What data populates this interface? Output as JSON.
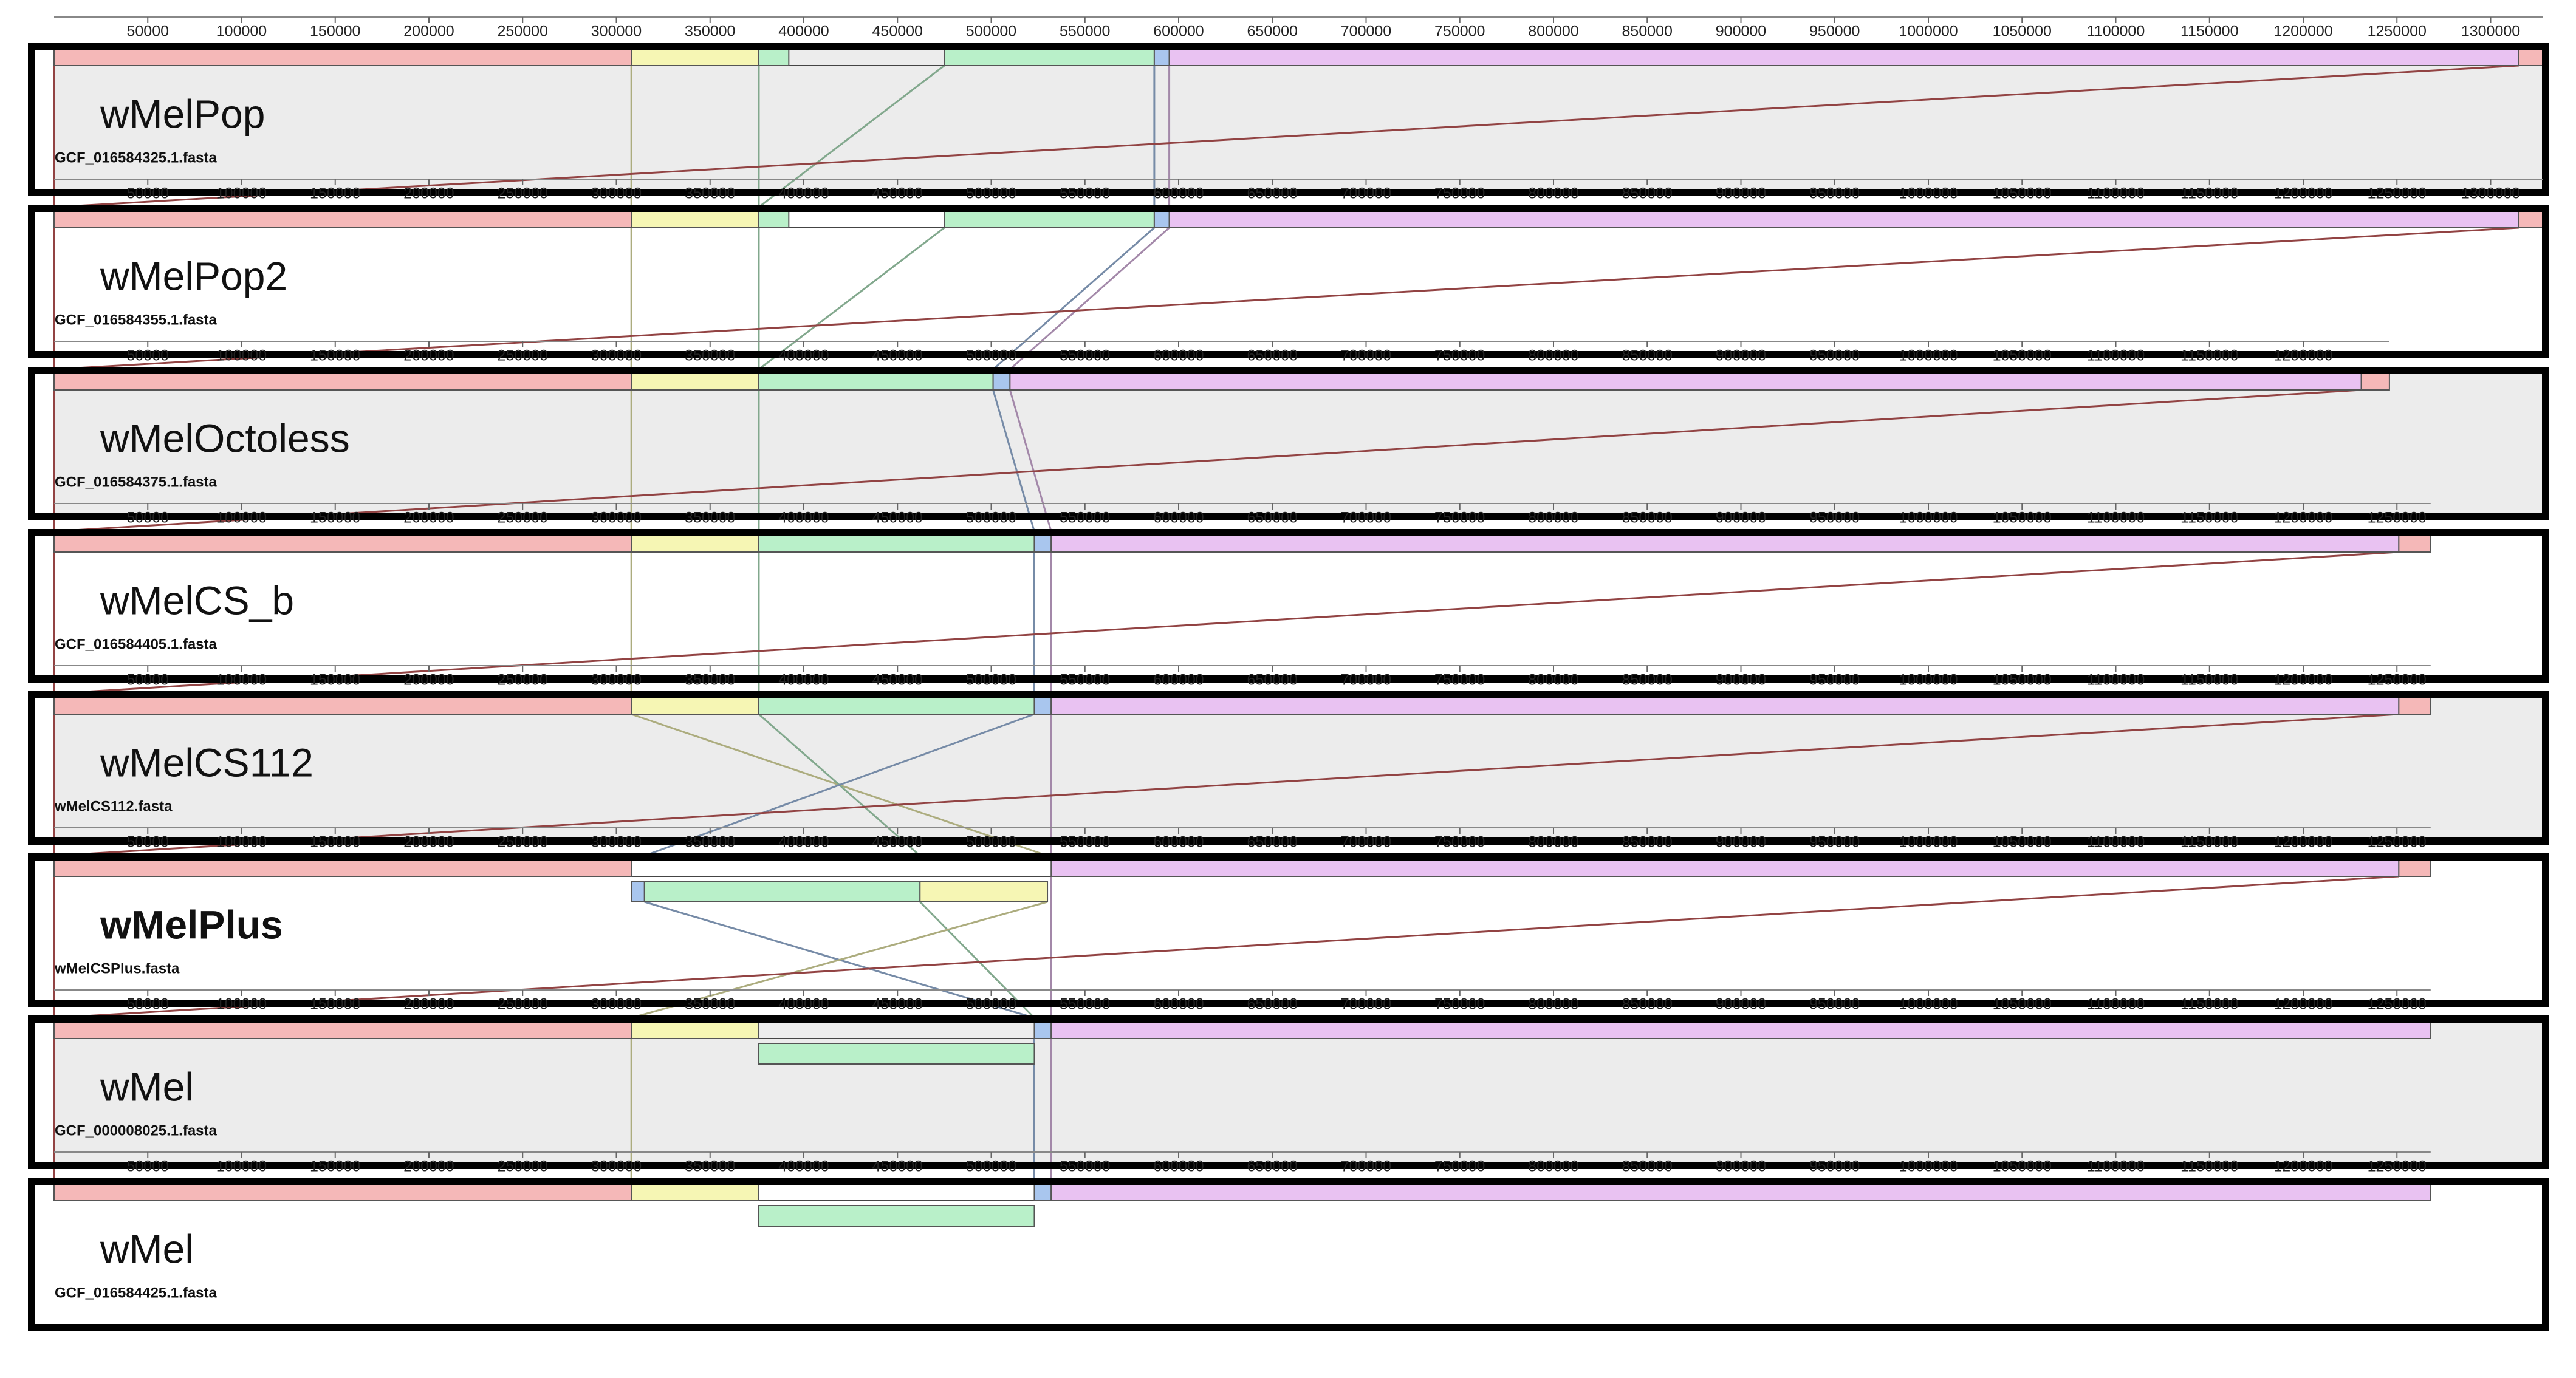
{
  "genomes": [
    {
      "name": "wMelPop",
      "file": "GCF_016584325.1.fasta",
      "bold": false,
      "shade": true,
      "length": 1328000,
      "ticks": [
        50000,
        100000,
        150000,
        200000,
        250000,
        300000,
        350000,
        400000,
        450000,
        500000,
        550000,
        600000,
        650000,
        700000,
        750000,
        800000,
        850000,
        900000,
        950000,
        1000000,
        1050000,
        1100000,
        1150000,
        1200000,
        1250000,
        1300000
      ],
      "blocks": [
        {
          "color": "#f5b8b8",
          "start": 0,
          "end": 308000,
          "inverted": false
        },
        {
          "color": "#f6f6b4",
          "start": 308000,
          "end": 376000,
          "inverted": false
        },
        {
          "color": "#b9f0c9",
          "start": 376000,
          "end": 392000,
          "inverted": false
        },
        {
          "color": "#b9f0c9",
          "start": 475000,
          "end": 587000,
          "inverted": false
        },
        {
          "color": "#a9c6ee",
          "start": 587000,
          "end": 595000,
          "inverted": false
        },
        {
          "color": "#e9c2f2",
          "start": 595000,
          "end": 1315000,
          "inverted": false
        },
        {
          "color": "#f5b8b8",
          "start": 1315000,
          "end": 1328000,
          "inverted": false
        }
      ]
    },
    {
      "name": "wMelPop2",
      "file": "GCF_016584355.1.fasta",
      "bold": false,
      "shade": false,
      "length": 1328000,
      "ticks": [
        50000,
        100000,
        150000,
        200000,
        250000,
        300000,
        350000,
        400000,
        450000,
        500000,
        550000,
        600000,
        650000,
        700000,
        750000,
        800000,
        850000,
        900000,
        950000,
        1000000,
        1050000,
        1100000,
        1150000,
        1200000,
        1250000,
        1300000
      ],
      "blocks": [
        {
          "color": "#f5b8b8",
          "start": 0,
          "end": 308000,
          "inverted": false
        },
        {
          "color": "#f6f6b4",
          "start": 308000,
          "end": 376000,
          "inverted": false
        },
        {
          "color": "#b9f0c9",
          "start": 376000,
          "end": 392000,
          "inverted": false
        },
        {
          "color": "#b9f0c9",
          "start": 475000,
          "end": 587000,
          "inverted": false
        },
        {
          "color": "#a9c6ee",
          "start": 587000,
          "end": 595000,
          "inverted": false
        },
        {
          "color": "#e9c2f2",
          "start": 595000,
          "end": 1315000,
          "inverted": false
        },
        {
          "color": "#f5b8b8",
          "start": 1315000,
          "end": 1328000,
          "inverted": false
        }
      ]
    },
    {
      "name": "wMelOctoless",
      "file": "GCF_016584375.1.fasta",
      "bold": false,
      "shade": true,
      "length": 1246000,
      "ticks": [
        50000,
        100000,
        150000,
        200000,
        250000,
        300000,
        350000,
        400000,
        450000,
        500000,
        550000,
        600000,
        650000,
        700000,
        750000,
        800000,
        850000,
        900000,
        950000,
        1000000,
        1050000,
        1100000,
        1150000,
        1200000
      ],
      "blocks": [
        {
          "color": "#f5b8b8",
          "start": 0,
          "end": 308000,
          "inverted": false
        },
        {
          "color": "#f6f6b4",
          "start": 308000,
          "end": 376000,
          "inverted": false
        },
        {
          "color": "#b9f0c9",
          "start": 376000,
          "end": 501000,
          "inverted": false
        },
        {
          "color": "#a9c6ee",
          "start": 501000,
          "end": 510000,
          "inverted": false
        },
        {
          "color": "#e9c2f2",
          "start": 510000,
          "end": 1231000,
          "inverted": false
        },
        {
          "color": "#f5b8b8",
          "start": 1231000,
          "end": 1246000,
          "inverted": false
        }
      ]
    },
    {
      "name": "wMelCS_b",
      "file": "GCF_016584405.1.fasta",
      "bold": false,
      "shade": false,
      "length": 1268000,
      "ticks": [
        50000,
        100000,
        150000,
        200000,
        250000,
        300000,
        350000,
        400000,
        450000,
        500000,
        550000,
        600000,
        650000,
        700000,
        750000,
        800000,
        850000,
        900000,
        950000,
        1000000,
        1050000,
        1100000,
        1150000,
        1200000,
        1250000
      ],
      "blocks": [
        {
          "color": "#f5b8b8",
          "start": 0,
          "end": 308000,
          "inverted": false
        },
        {
          "color": "#f6f6b4",
          "start": 308000,
          "end": 376000,
          "inverted": false
        },
        {
          "color": "#b9f0c9",
          "start": 376000,
          "end": 523000,
          "inverted": false
        },
        {
          "color": "#a9c6ee",
          "start": 523000,
          "end": 532000,
          "inverted": false
        },
        {
          "color": "#e9c2f2",
          "start": 532000,
          "end": 1251000,
          "inverted": false
        },
        {
          "color": "#f5b8b8",
          "start": 1251000,
          "end": 1268000,
          "inverted": false
        }
      ]
    },
    {
      "name": "wMelCS112",
      "file": "wMelCS112.fasta",
      "bold": false,
      "shade": true,
      "length": 1268000,
      "ticks": [
        50000,
        100000,
        150000,
        200000,
        250000,
        300000,
        350000,
        400000,
        450000,
        500000,
        550000,
        600000,
        650000,
        700000,
        750000,
        800000,
        850000,
        900000,
        950000,
        1000000,
        1050000,
        1100000,
        1150000,
        1200000,
        1250000
      ],
      "blocks": [
        {
          "color": "#f5b8b8",
          "start": 0,
          "end": 308000,
          "inverted": false
        },
        {
          "color": "#f6f6b4",
          "start": 308000,
          "end": 376000,
          "inverted": false
        },
        {
          "color": "#b9f0c9",
          "start": 376000,
          "end": 523000,
          "inverted": false
        },
        {
          "color": "#a9c6ee",
          "start": 523000,
          "end": 532000,
          "inverted": false
        },
        {
          "color": "#e9c2f2",
          "start": 532000,
          "end": 1251000,
          "inverted": false
        },
        {
          "color": "#f5b8b8",
          "start": 1251000,
          "end": 1268000,
          "inverted": false
        }
      ]
    },
    {
      "name": "wMelPlus",
      "file": "wMelCSPlus.fasta",
      "bold": true,
      "shade": false,
      "length": 1268000,
      "ticks": [
        50000,
        100000,
        150000,
        200000,
        250000,
        300000,
        350000,
        400000,
        450000,
        500000,
        550000,
        600000,
        650000,
        700000,
        750000,
        800000,
        850000,
        900000,
        950000,
        1000000,
        1050000,
        1100000,
        1150000,
        1200000,
        1250000
      ],
      "blocks": [
        {
          "color": "#f5b8b8",
          "start": 0,
          "end": 308000,
          "inverted": false
        },
        {
          "color": "#a9c6ee",
          "start": 308000,
          "end": 315000,
          "inverted": true
        },
        {
          "color": "#b9f0c9",
          "start": 315000,
          "end": 462000,
          "inverted": true
        },
        {
          "color": "#f6f6b4",
          "start": 462000,
          "end": 530000,
          "inverted": true
        },
        {
          "color": "#e9c2f2",
          "start": 532000,
          "end": 1251000,
          "inverted": false
        },
        {
          "color": "#f5b8b8",
          "start": 1251000,
          "end": 1268000,
          "inverted": false
        }
      ]
    },
    {
      "name": "wMel",
      "file": "GCF_000008025.1.fasta",
      "bold": false,
      "shade": true,
      "length": 1268000,
      "ticks": [
        50000,
        100000,
        150000,
        200000,
        250000,
        300000,
        350000,
        400000,
        450000,
        500000,
        550000,
        600000,
        650000,
        700000,
        750000,
        800000,
        850000,
        900000,
        950000,
        1000000,
        1050000,
        1100000,
        1150000,
        1200000,
        1250000
      ],
      "blocks": [
        {
          "color": "#f5b8b8",
          "start": 0,
          "end": 308000,
          "inverted": false
        },
        {
          "color": "#f6f6b4",
          "start": 308000,
          "end": 376000,
          "inverted": false
        },
        {
          "color": "#b9f0c9",
          "start": 376000,
          "end": 523000,
          "inverted": true
        },
        {
          "color": "#a9c6ee",
          "start": 523000,
          "end": 532000,
          "inverted": false
        },
        {
          "color": "#e9c2f2",
          "start": 532000,
          "end": 1268000,
          "inverted": false
        }
      ]
    },
    {
      "name": "wMel",
      "file": "GCF_016584425.1.fasta",
      "bold": false,
      "shade": false,
      "length": 1268000,
      "ticks": [
        50000,
        100000,
        150000,
        200000,
        250000,
        300000,
        350000,
        400000,
        450000,
        500000,
        550000,
        600000,
        650000,
        700000,
        750000,
        800000,
        850000,
        900000,
        950000,
        1000000,
        1050000,
        1100000,
        1150000,
        1200000,
        1250000
      ],
      "blocks": [
        {
          "color": "#f5b8b8",
          "start": 0,
          "end": 308000,
          "inverted": false
        },
        {
          "color": "#f6f6b4",
          "start": 308000,
          "end": 376000,
          "inverted": false
        },
        {
          "color": "#b9f0c9",
          "start": 376000,
          "end": 523000,
          "inverted": true
        },
        {
          "color": "#a9c6ee",
          "start": 523000,
          "end": 532000,
          "inverted": false
        },
        {
          "color": "#e9c2f2",
          "start": 532000,
          "end": 1268000,
          "inverted": false
        }
      ]
    }
  ]
}
